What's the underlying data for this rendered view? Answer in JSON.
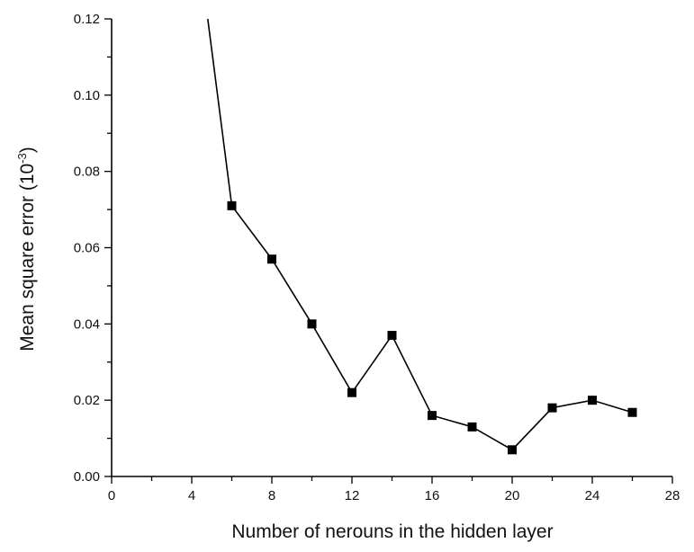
{
  "chart_data": {
    "type": "line",
    "title": "",
    "xlabel": "Number of nerouns in the hidden layer",
    "ylabel_main": "Mean square error (10",
    "ylabel_sup": "-3",
    "ylabel_close": ")",
    "xlim": [
      0,
      28
    ],
    "ylim": [
      0,
      0.12
    ],
    "x_ticks": [
      "0",
      "4",
      "8",
      "12",
      "16",
      "20",
      "24",
      "28"
    ],
    "y_ticks": [
      "0.00",
      "0.02",
      "0.04",
      "0.06",
      "0.08",
      "0.10",
      "0.12"
    ],
    "series": [
      {
        "x": [
          4.8,
          6,
          8,
          10,
          12,
          14,
          16,
          18,
          20,
          22,
          24,
          26
        ],
        "y": [
          0.12,
          0.071,
          0.057,
          0.04,
          0.022,
          0.037,
          0.016,
          0.013,
          0.007,
          0.018,
          0.02,
          0.0168
        ],
        "markers": [
          false,
          true,
          true,
          true,
          true,
          true,
          true,
          true,
          true,
          true,
          true,
          true
        ]
      }
    ],
    "grid": false,
    "legend": "none",
    "colors": {
      "line": "#000000",
      "marker": "#000000"
    }
  }
}
